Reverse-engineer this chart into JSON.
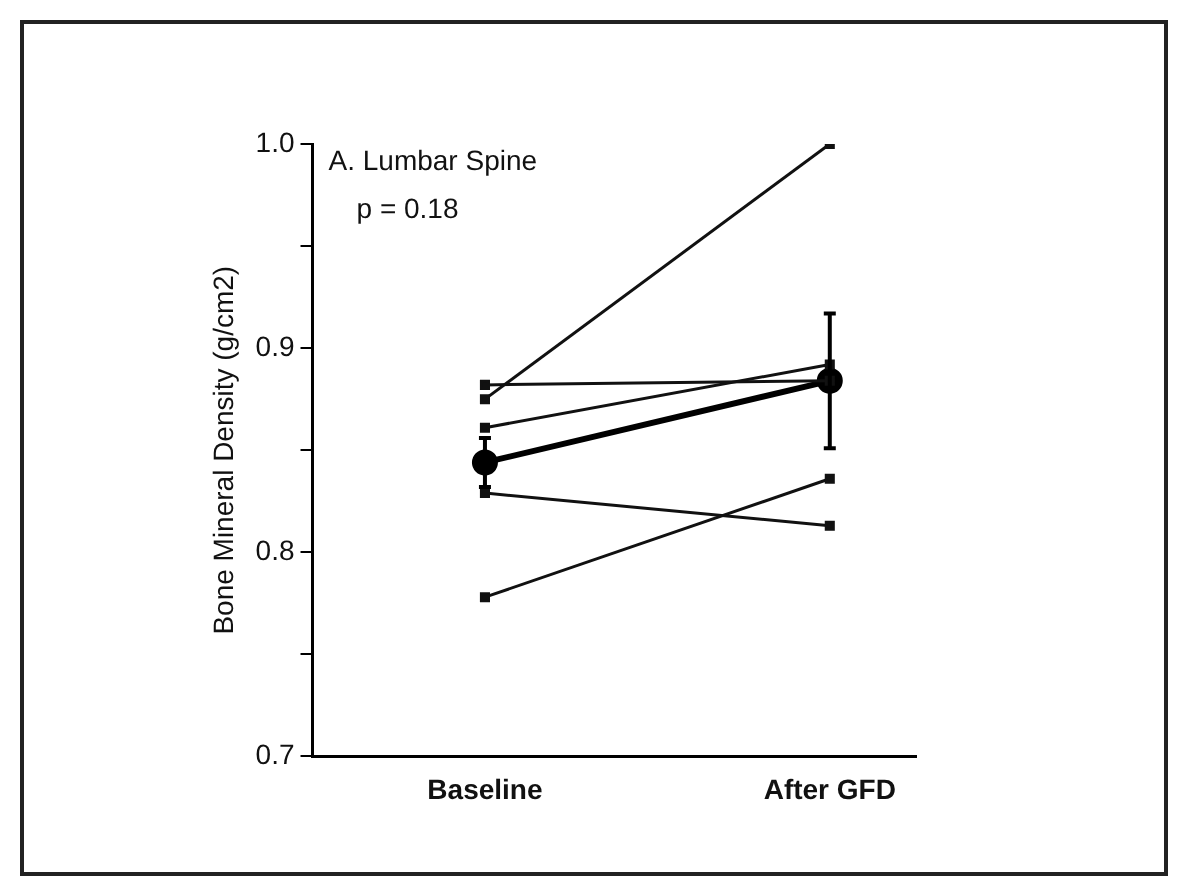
{
  "chart_data": {
    "type": "line",
    "ylabel": "Bone Mineral Density (g/cm2)",
    "categories": [
      "Baseline",
      "After GFD"
    ],
    "ylim": [
      0.7,
      1.0
    ],
    "yticks": [
      0.7,
      {
        "value": 0.75,
        "label": null
      },
      0.8,
      {
        "value": 0.85,
        "label": null
      },
      0.9,
      {
        "value": 0.95,
        "label": null
      },
      {
        "value": 1.0,
        "label": "1.0"
      }
    ],
    "grid": false,
    "legend": false,
    "marker": "square",
    "line_style": "solid",
    "annotations": [
      "A. Lumbar Spine",
      "p = 0.18"
    ],
    "series": [
      {
        "color": "#111111",
        "values": [
          0.875,
          1.0
        ]
      },
      {
        "color": "#111111",
        "values": [
          0.882,
          0.884
        ]
      },
      {
        "color": "#111111",
        "values": [
          0.861,
          0.892
        ]
      },
      {
        "color": "#111111",
        "values": [
          0.829,
          0.813
        ]
      },
      {
        "color": "#111111",
        "values": [
          0.778,
          0.836
        ]
      },
      {
        "color": "#000000",
        "marker": "circle",
        "values": [
          0.844,
          0.884
        ],
        "errors": [
          0.012,
          0.033
        ]
      }
    ]
  }
}
